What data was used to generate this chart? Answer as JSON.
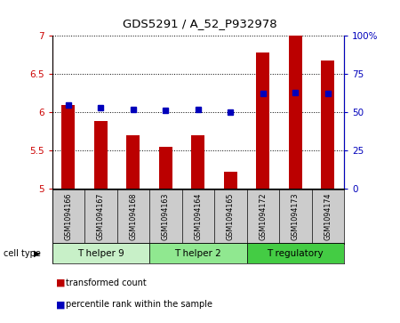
{
  "title": "GDS5291 / A_52_P932978",
  "samples": [
    "GSM1094166",
    "GSM1094167",
    "GSM1094168",
    "GSM1094163",
    "GSM1094164",
    "GSM1094165",
    "GSM1094172",
    "GSM1094173",
    "GSM1094174"
  ],
  "transformed_counts": [
    6.1,
    5.88,
    5.7,
    5.55,
    5.7,
    5.23,
    6.78,
    7.0,
    6.68
  ],
  "percentile_ranks": [
    55,
    53,
    52,
    51,
    52,
    50,
    62,
    63,
    62
  ],
  "cell_types": [
    {
      "label": "T helper 9",
      "start": 0,
      "end": 3,
      "color": "#c8f0c8"
    },
    {
      "label": "T helper 2",
      "start": 3,
      "end": 6,
      "color": "#90e890"
    },
    {
      "label": "T regulatory",
      "start": 6,
      "end": 9,
      "color": "#44cc44"
    }
  ],
  "ylim_left": [
    5.0,
    7.0
  ],
  "ylim_right": [
    0,
    100
  ],
  "yticks_left": [
    5.0,
    5.5,
    6.0,
    6.5,
    7.0
  ],
  "yticks_right": [
    0,
    25,
    50,
    75,
    100
  ],
  "bar_color": "#bb0000",
  "dot_color": "#0000bb",
  "bar_width": 0.4,
  "plot_bg_color": "#ffffff",
  "sample_box_color": "#cccccc",
  "legend_red_label": "transformed count",
  "legend_blue_label": "percentile rank within the sample"
}
